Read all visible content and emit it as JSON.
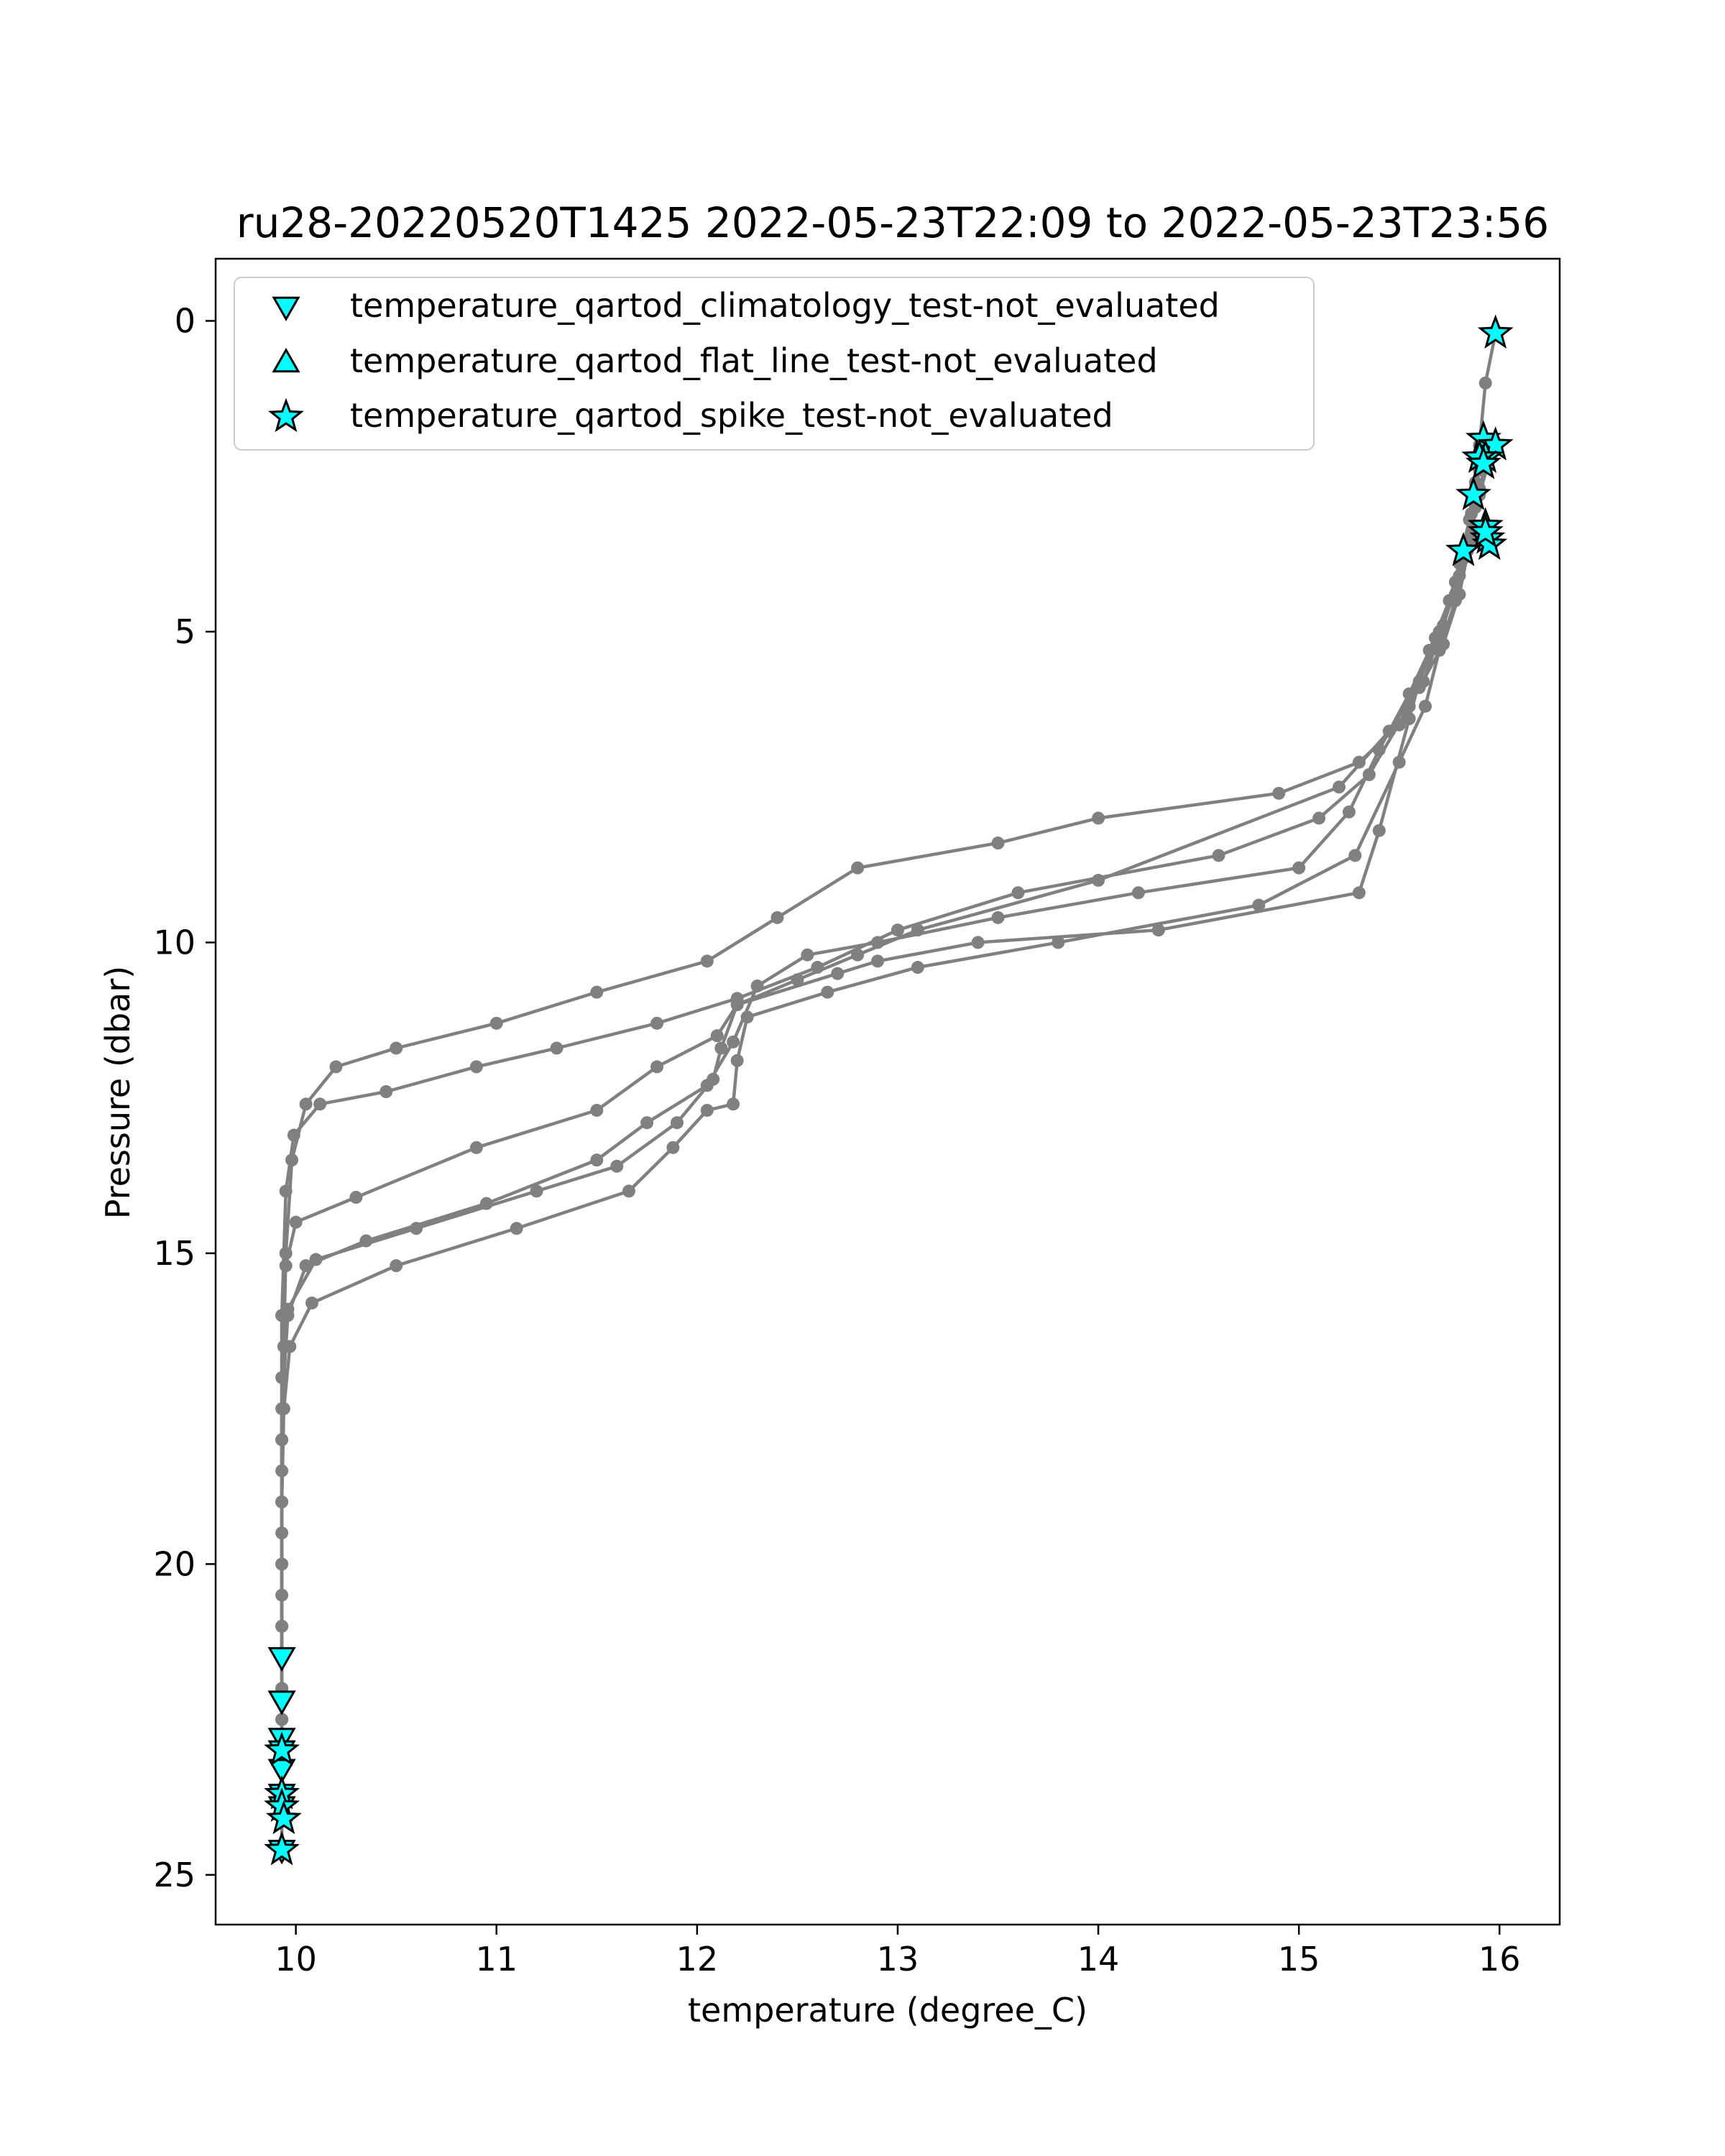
{
  "chart_data": {
    "type": "line",
    "title": "ru28-20220520T1425 2022-05-23T22:09 to 2022-05-23T23:56",
    "xlabel": "temperature (degree_C)",
    "ylabel": "Pressure (dbar)",
    "xlim": [
      9.6,
      16.3
    ],
    "ylim": [
      25.8,
      -1.0
    ],
    "y_inverted": true,
    "xticks": [
      "10",
      "11",
      "12",
      "13",
      "14",
      "15",
      "16"
    ],
    "yticks": [
      "0",
      "5",
      "10",
      "15",
      "20",
      "25"
    ],
    "grid": false,
    "legend_position": "upper left",
    "line_color": "#808080",
    "marker_color": "#00ffff",
    "legend": [
      {
        "label": "temperature_qartod_climatology_test-not_evaluated",
        "marker": "triangle-down"
      },
      {
        "label": "temperature_qartod_flat_line_test-not_evaluated",
        "marker": "triangle-up"
      },
      {
        "label": "temperature_qartod_spike_test-not_evaluated",
        "marker": "star"
      }
    ],
    "profiles": [
      {
        "x": [
          15.98,
          15.93,
          15.9,
          15.88,
          15.85,
          15.8,
          15.72,
          15.6,
          15.5,
          15.3,
          14.9,
          14.0,
          13.5,
          12.8,
          12.4,
          12.05,
          11.5,
          11.0,
          10.5,
          10.2,
          10.05,
          9.98,
          9.95,
          9.94,
          9.93,
          9.93,
          9.93,
          9.93,
          9.93
        ],
        "y": [
          0.2,
          1.0,
          2.0,
          2.8,
          3.6,
          4.4,
          5.2,
          5.9,
          6.5,
          7.1,
          7.6,
          8.0,
          8.4,
          8.8,
          9.6,
          10.3,
          10.8,
          11.3,
          11.7,
          12.0,
          12.6,
          13.5,
          15.0,
          16.5,
          18.5,
          20.5,
          22.5,
          24.0,
          24.6
        ]
      },
      {
        "x": [
          15.92,
          15.88,
          15.85,
          15.8,
          15.75,
          15.65,
          15.55,
          15.35,
          15.1,
          14.6,
          13.6,
          13.0,
          12.6,
          12.2,
          11.8,
          11.3,
          10.9,
          10.45,
          10.12,
          9.99,
          9.95,
          9.93,
          9.93,
          9.93,
          9.93
        ],
        "y": [
          2.0,
          2.6,
          3.2,
          3.9,
          4.5,
          5.3,
          6.2,
          7.3,
          8.0,
          8.6,
          9.2,
          9.8,
          10.4,
          10.9,
          11.3,
          11.7,
          12.0,
          12.4,
          12.6,
          13.1,
          14.0,
          16.0,
          18.0,
          20.0,
          22.0
        ]
      },
      {
        "x": [
          15.96,
          15.9,
          15.86,
          15.8,
          15.72,
          15.62,
          15.45,
          15.2,
          14.0,
          13.1,
          12.8,
          12.5,
          12.2,
          12.1,
          11.8,
          11.5,
          10.9,
          10.3,
          10.0,
          9.95,
          9.93,
          9.93,
          9.93,
          9.93,
          9.93
        ],
        "y": [
          2.0,
          2.7,
          3.4,
          4.1,
          4.9,
          5.8,
          6.6,
          7.5,
          9.0,
          9.8,
          10.2,
          10.6,
          11.0,
          11.5,
          12.0,
          12.7,
          13.3,
          14.1,
          14.5,
          15.2,
          16.0,
          18.0,
          20.0,
          22.0,
          23.0
        ]
      },
      {
        "x": [
          15.93,
          15.88,
          15.84,
          15.78,
          15.68,
          15.55,
          15.4,
          15.25,
          15.0,
          14.2,
          13.5,
          12.9,
          12.55,
          12.3,
          12.18,
          12.05,
          11.75,
          11.5,
          10.95,
          10.35,
          10.05,
          9.96,
          9.93,
          9.93,
          9.93,
          9.93,
          9.93
        ],
        "y": [
          2.3,
          3.0,
          3.7,
          4.4,
          5.1,
          6.0,
          6.9,
          7.9,
          8.8,
          9.2,
          9.6,
          10.0,
          10.2,
          10.7,
          11.6,
          12.3,
          12.9,
          13.5,
          14.2,
          14.8,
          15.2,
          16.0,
          17.5,
          19.5,
          21.0,
          22.5,
          23.9
        ]
      },
      {
        "x": [
          15.96,
          15.9,
          15.85,
          15.78,
          15.7,
          15.6,
          15.55,
          15.4,
          15.3,
          14.3,
          13.4,
          12.9,
          12.7,
          12.2,
          12.12,
          12.08,
          11.9,
          11.6,
          11.2,
          10.6,
          10.1,
          9.96,
          9.93,
          9.93,
          9.93,
          9.93,
          9.93
        ],
        "y": [
          2.1,
          2.8,
          3.5,
          4.2,
          5.0,
          5.8,
          6.4,
          8.2,
          9.2,
          9.8,
          10.0,
          10.3,
          10.5,
          11.0,
          11.7,
          12.2,
          12.9,
          13.6,
          14.0,
          14.6,
          15.1,
          15.9,
          17.0,
          19.0,
          21.0,
          22.5,
          23.8
        ]
      },
      {
        "x": [
          15.9,
          15.86,
          15.83,
          15.78,
          15.7,
          15.63,
          15.5,
          15.28,
          14.8,
          13.8,
          13.1,
          12.65,
          12.25,
          12.2,
          12.18,
          12.05,
          11.88,
          11.66,
          11.1,
          10.5,
          10.08,
          9.97,
          9.94,
          9.93,
          9.93,
          9.93
        ],
        "y": [
          2.4,
          3.1,
          3.8,
          4.5,
          5.3,
          6.2,
          7.1,
          8.6,
          9.4,
          10.0,
          10.4,
          10.8,
          11.2,
          11.9,
          12.6,
          12.7,
          13.3,
          14.0,
          14.6,
          15.2,
          15.8,
          16.5,
          17.5,
          19.0,
          21.0,
          23.1
        ]
      }
    ],
    "flag_markers": {
      "climatology": {
        "x": [
          9.93,
          9.93,
          9.93,
          9.93,
          9.93,
          9.93,
          9.93,
          9.93
        ],
        "y": [
          21.5,
          22.2,
          22.8,
          23.0,
          23.3,
          23.7,
          23.9,
          24.6
        ]
      },
      "spike": {
        "x": [
          15.98,
          15.92,
          15.98,
          15.93,
          15.9,
          15.87,
          15.93,
          15.94,
          15.82,
          15.95,
          15.92,
          15.93,
          9.93,
          9.93,
          9.93,
          9.94,
          9.93
        ],
        "y": [
          0.2,
          1.9,
          2.0,
          2.2,
          2.2,
          2.8,
          3.3,
          3.5,
          3.7,
          3.6,
          2.3,
          3.4,
          23.0,
          23.7,
          23.9,
          24.1,
          24.6
        ]
      }
    }
  }
}
